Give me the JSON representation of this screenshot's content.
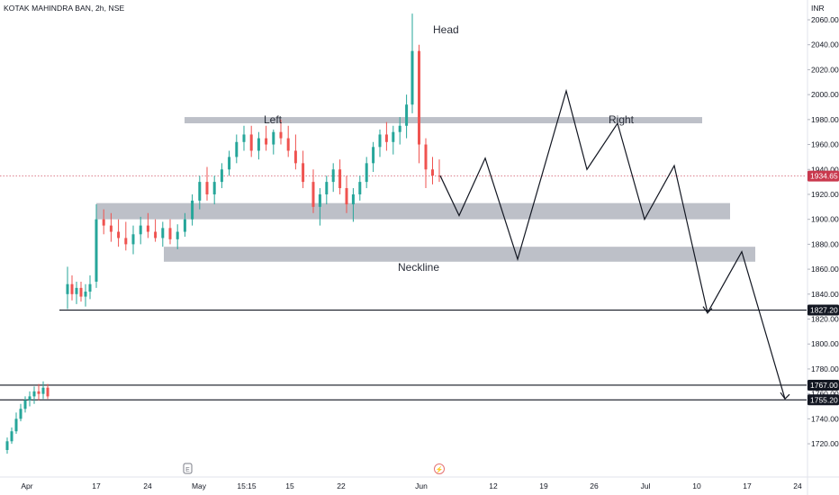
{
  "header": {
    "symbol": "KOTAK MAHINDRA BAN, 2h, NSE",
    "currency": "INR"
  },
  "colors": {
    "up": "#26a69a",
    "down": "#ef5350",
    "zone": "#b2b5be",
    "line": "#131722",
    "current_price": "#c9384d"
  },
  "chart_data": {
    "type": "candlestick",
    "y_axis": {
      "ylim": [
        1708,
        2073
      ],
      "ticks": [
        2060,
        2040,
        2020,
        2000,
        1980,
        1960,
        1940,
        1920,
        1900,
        1880,
        1860,
        1840,
        1820,
        1800,
        1780,
        1760,
        1740,
        1720
      ],
      "tick_labels": [
        "2060.00",
        "2040.00",
        "2020.00",
        "2000.00",
        "1980.00",
        "1960.00",
        "1940.00",
        "1920.00",
        "1900.00",
        "1880.00",
        "1860.00",
        "1840.00",
        "1820.00",
        "1800.00",
        "1780.00",
        "1760.00",
        "1740.00",
        "1720.00"
      ]
    },
    "x_axis": {
      "tick_labels": [
        "Apr",
        "17",
        "24",
        "May",
        "15:15",
        "15",
        "22",
        "Jun",
        "12",
        "19",
        "26",
        "Jul",
        "10",
        "17",
        "24"
      ]
    },
    "price_labels": [
      {
        "name": "current",
        "value": 1934.65,
        "label": "1934.65"
      },
      {
        "name": "level-1827",
        "value": 1827.2,
        "label": "1827.20"
      },
      {
        "name": "level-1767",
        "value": 1767.0,
        "label": "1767.00"
      },
      {
        "name": "level-1755",
        "value": 1755.2,
        "label": "1755.20"
      }
    ],
    "support_levels": [
      1827.2,
      1767.0,
      1755.2
    ],
    "zones": [
      {
        "name": "left-right-shoulder-zone",
        "low": 1977,
        "high": 1982
      },
      {
        "name": "upper-support-zone",
        "low": 1900,
        "high": 1913
      },
      {
        "name": "neckline-zone",
        "low": 1866,
        "high": 1878
      }
    ],
    "annotations": [
      {
        "name": "head-label",
        "text": "Head",
        "price": 2060
      },
      {
        "name": "left-label",
        "text": "Left",
        "price": 1987
      },
      {
        "name": "right-label",
        "text": "Right",
        "price": 1987
      },
      {
        "name": "neckline-label",
        "text": "Neckline",
        "price": 1872
      }
    ],
    "projection_path": [
      1935,
      1903,
      1949,
      1868,
      2003,
      1940,
      1977,
      1900,
      1943,
      1825,
      1874,
      1756
    ],
    "candles": [
      [
        1715,
        1725,
        1712,
        1722
      ],
      [
        1722,
        1733,
        1720,
        1730
      ],
      [
        1730,
        1745,
        1728,
        1740
      ],
      [
        1740,
        1752,
        1738,
        1748
      ],
      [
        1748,
        1758,
        1745,
        1755
      ],
      [
        1755,
        1762,
        1750,
        1758
      ],
      [
        1758,
        1766,
        1752,
        1762
      ],
      [
        1762,
        1768,
        1755,
        1760
      ],
      [
        1760,
        1770,
        1756,
        1765
      ],
      [
        1765,
        1768,
        1756,
        1758
      ],
      [
        1840,
        1862,
        1828,
        1848
      ],
      [
        1848,
        1855,
        1835,
        1840
      ],
      [
        1840,
        1850,
        1832,
        1845
      ],
      [
        1845,
        1850,
        1834,
        1838
      ],
      [
        1838,
        1848,
        1830,
        1842
      ],
      [
        1842,
        1855,
        1836,
        1848
      ],
      [
        1850,
        1912,
        1845,
        1900
      ],
      [
        1900,
        1908,
        1888,
        1895
      ],
      [
        1895,
        1905,
        1882,
        1890
      ],
      [
        1890,
        1900,
        1878,
        1885
      ],
      [
        1885,
        1898,
        1875,
        1880
      ],
      [
        1880,
        1895,
        1872,
        1888
      ],
      [
        1888,
        1902,
        1880,
        1895
      ],
      [
        1895,
        1905,
        1885,
        1890
      ],
      [
        1890,
        1900,
        1882,
        1885
      ],
      [
        1885,
        1898,
        1878,
        1893
      ],
      [
        1893,
        1900,
        1880,
        1884
      ],
      [
        1884,
        1896,
        1876,
        1890
      ],
      [
        1890,
        1905,
        1886,
        1900
      ],
      [
        1900,
        1920,
        1895,
        1915
      ],
      [
        1915,
        1935,
        1908,
        1930
      ],
      [
        1930,
        1942,
        1915,
        1920
      ],
      [
        1920,
        1935,
        1912,
        1930
      ],
      [
        1930,
        1945,
        1925,
        1940
      ],
      [
        1940,
        1955,
        1935,
        1950
      ],
      [
        1950,
        1968,
        1945,
        1962
      ],
      [
        1962,
        1975,
        1955,
        1968
      ],
      [
        1968,
        1975,
        1950,
        1955
      ],
      [
        1955,
        1970,
        1948,
        1965
      ],
      [
        1965,
        1975,
        1955,
        1960
      ],
      [
        1960,
        1972,
        1952,
        1970
      ],
      [
        1970,
        1980,
        1960,
        1965
      ],
      [
        1965,
        1975,
        1950,
        1955
      ],
      [
        1955,
        1968,
        1940,
        1945
      ],
      [
        1945,
        1955,
        1925,
        1930
      ],
      [
        1930,
        1940,
        1905,
        1910
      ],
      [
        1910,
        1925,
        1895,
        1920
      ],
      [
        1920,
        1935,
        1912,
        1930
      ],
      [
        1930,
        1945,
        1922,
        1940
      ],
      [
        1940,
        1948,
        1920,
        1925
      ],
      [
        1925,
        1935,
        1905,
        1912
      ],
      [
        1912,
        1925,
        1898,
        1920
      ],
      [
        1920,
        1935,
        1915,
        1930
      ],
      [
        1930,
        1950,
        1925,
        1945
      ],
      [
        1945,
        1962,
        1938,
        1958
      ],
      [
        1958,
        1972,
        1950,
        1968
      ],
      [
        1968,
        1978,
        1955,
        1962
      ],
      [
        1962,
        1975,
        1952,
        1970
      ],
      [
        1970,
        1982,
        1960,
        1975
      ],
      [
        1975,
        2000,
        1965,
        1992
      ],
      [
        1992,
        2065,
        1985,
        2035
      ],
      [
        2035,
        2040,
        1945,
        1960
      ],
      [
        1960,
        1965,
        1925,
        1940
      ],
      [
        1940,
        1950,
        1928,
        1935
      ],
      [
        1935,
        1948,
        1930,
        1934.65
      ]
    ]
  }
}
